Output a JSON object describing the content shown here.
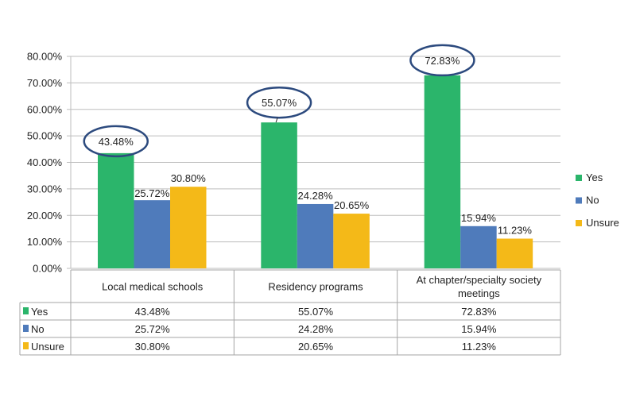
{
  "chart_data": {
    "type": "bar",
    "categories": [
      "Local medical schools",
      "Residency programs",
      "At chapter/specialty society meetings"
    ],
    "category_lines": [
      [
        "Local medical schools"
      ],
      [
        "Residency programs"
      ],
      [
        "At chapter/specialty society",
        "meetings"
      ]
    ],
    "series": [
      {
        "name": "Yes",
        "color": "#2bb56b",
        "values": [
          43.48,
          55.07,
          72.83
        ],
        "labels": [
          "43.48%",
          "55.07%",
          "72.83%"
        ]
      },
      {
        "name": "No",
        "color": "#4f7bbb",
        "values": [
          25.72,
          24.28,
          15.94
        ],
        "labels": [
          "25.72%",
          "24.28%",
          "15.94%"
        ]
      },
      {
        "name": "Unsure",
        "color": "#f4b918",
        "values": [
          30.8,
          20.65,
          11.23
        ],
        "labels": [
          "30.80%",
          "20.65%",
          "11.23%"
        ]
      }
    ],
    "ylim": [
      0,
      80
    ],
    "yticks": [
      "0.00%",
      "10.00%",
      "20.00%",
      "30.00%",
      "40.00%",
      "50.00%",
      "60.00%",
      "70.00%",
      "80.00%"
    ],
    "grid": true,
    "legend": "right",
    "data_table": true,
    "highlight": {
      "series": "Yes",
      "color": "#2c4a7e"
    }
  }
}
